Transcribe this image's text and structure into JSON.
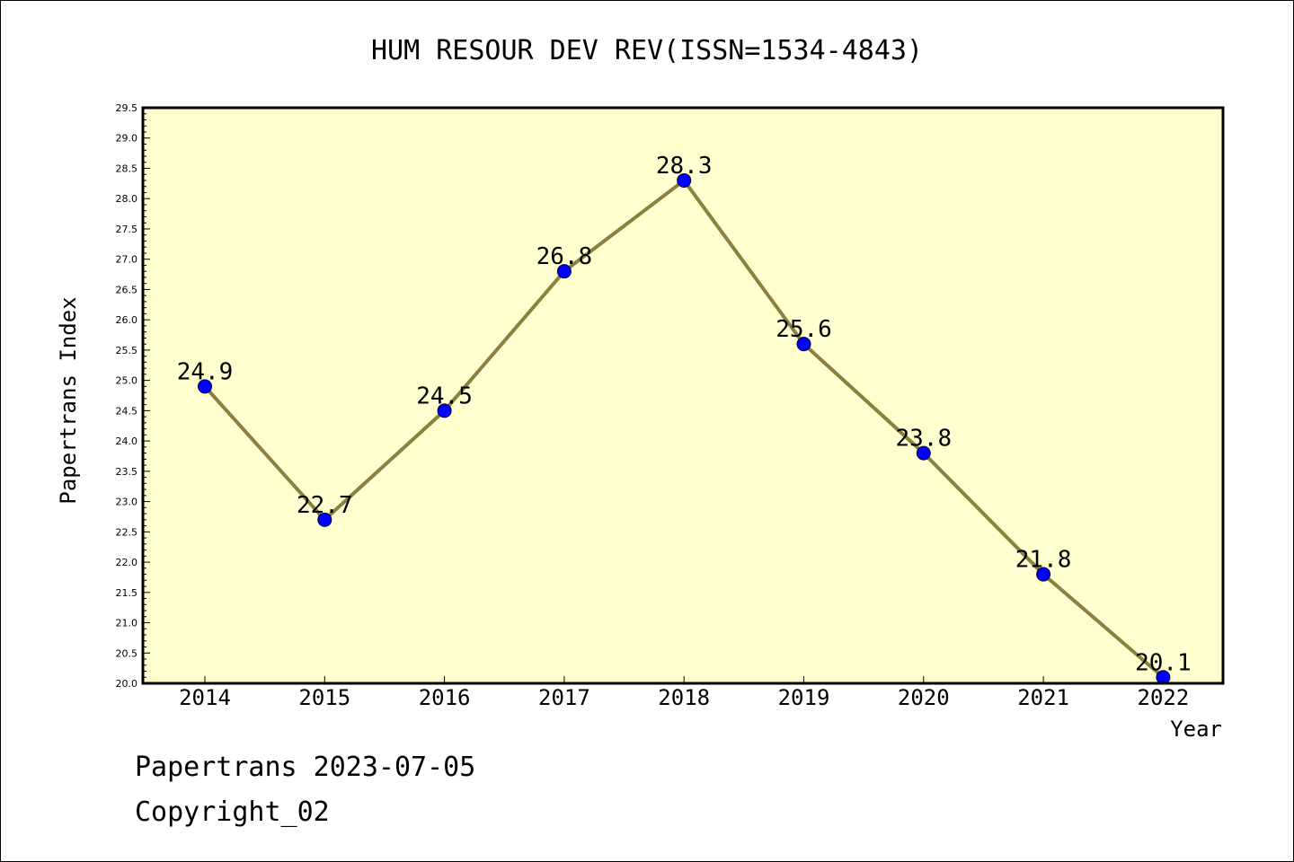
{
  "chart_data": {
    "type": "line",
    "title": "HUM RESOUR DEV REV(ISSN=1534-4843)",
    "xlabel": "Year",
    "ylabel": "Papertrans Index",
    "categories": [
      "2014",
      "2015",
      "2016",
      "2017",
      "2018",
      "2019",
      "2020",
      "2021",
      "2022"
    ],
    "values": [
      24.9,
      22.7,
      24.5,
      26.8,
      28.3,
      25.6,
      23.8,
      21.8,
      20.1
    ],
    "data_labels": [
      "24.9",
      "22.7",
      "24.5",
      "26.8",
      "28.3",
      "25.6",
      "23.8",
      "21.8",
      "20.1"
    ],
    "ylim": [
      20.0,
      29.5
    ],
    "yticks": [
      "20.0",
      "20.5",
      "21.0",
      "21.5",
      "22.0",
      "22.5",
      "23.0",
      "23.5",
      "24.0",
      "24.5",
      "25.0",
      "25.5",
      "26.0",
      "26.5",
      "27.0",
      "27.5",
      "28.0",
      "28.5",
      "29.0",
      "29.5"
    ],
    "grid": false,
    "colors": {
      "plot_background": "#ffffd0",
      "line": "#8b8040",
      "marker": "#0000ff"
    }
  },
  "footer": {
    "line1": "Papertrans 2023-07-05",
    "line2": "Copyright_02"
  }
}
